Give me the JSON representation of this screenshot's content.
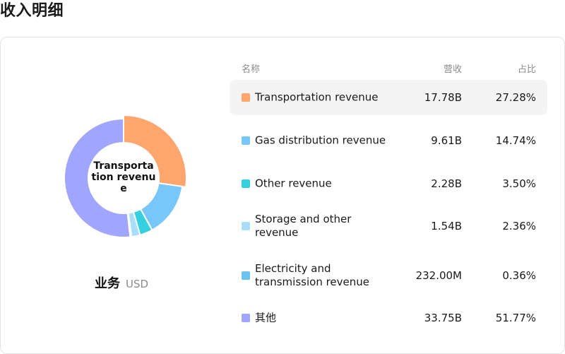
{
  "page": {
    "title": "收入明细"
  },
  "table": {
    "headers": {
      "name": "名称",
      "revenue": "营收",
      "share": "占比"
    }
  },
  "caption": {
    "main": "业务",
    "unit": "USD"
  },
  "center_label": "Transportation revenue",
  "chart_data": {
    "type": "pie",
    "donut": true,
    "title": "",
    "center_label": "Transportation revenue",
    "categories": [
      "Transportation revenue",
      "Gas distribution revenue",
      "Other revenue",
      "Storage and other revenue",
      "Electricity and transmission revenue",
      "其他"
    ],
    "values": [
      27.28,
      14.74,
      3.5,
      2.36,
      0.36,
      51.77
    ],
    "revenue_labels": [
      "17.78B",
      "9.61B",
      "2.28B",
      "1.54B",
      "232.00M",
      "33.75B"
    ],
    "share_labels": [
      "27.28%",
      "14.74%",
      "3.50%",
      "2.36%",
      "0.36%",
      "51.77%"
    ],
    "colors": [
      "#ffa66e",
      "#78c6fa",
      "#36cfe0",
      "#a8defa",
      "#6bc4f0",
      "#a0a5fd"
    ],
    "highlighted": "Transportation revenue",
    "legend": "right"
  }
}
